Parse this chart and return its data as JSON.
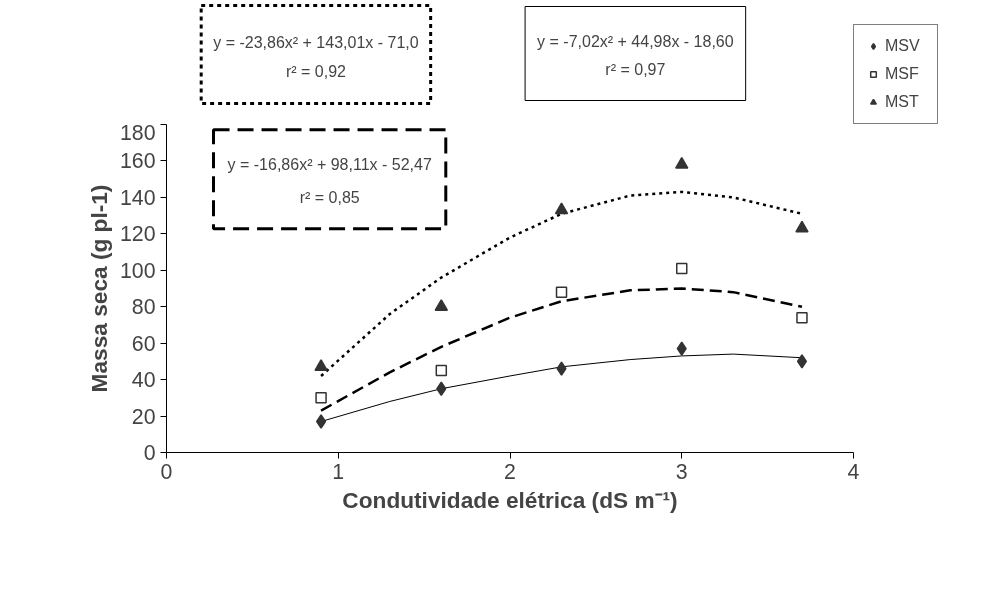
{
  "chart_data": {
    "type": "scatter",
    "xlabel": "Condutividade elétrica (dS m⁻¹)",
    "ylabel": "Massa seca (g pl-1)",
    "xlim": [
      0,
      4
    ],
    "xticks": [
      0,
      1,
      2,
      3,
      4
    ],
    "ylim": [
      0,
      180
    ],
    "yticks": [
      0,
      20,
      40,
      60,
      80,
      100,
      120,
      140,
      160,
      180
    ],
    "grid": false,
    "legend": "top right",
    "x": [
      0.9,
      1.6,
      2.3,
      3.0,
      3.7
    ],
    "series": [
      {
        "name": "MSV",
        "marker": "diamond",
        "color": "#333333",
        "values": [
          17,
          35,
          46,
          57,
          50
        ]
      },
      {
        "name": "MSF",
        "marker": "square",
        "color": "#333333",
        "values": [
          30,
          45,
          88,
          101,
          74
        ]
      },
      {
        "name": "MST",
        "marker": "triangle",
        "color": "#333333",
        "values": [
          47,
          80,
          133,
          158,
          123
        ]
      },
      {
        "type": "line",
        "line_style": "solid",
        "color": "#000000",
        "x": [
          0.9,
          1.3,
          1.6,
          2.0,
          2.3,
          2.7,
          3.0,
          3.3,
          3.7
        ],
        "values": [
          17,
          28,
          35,
          42,
          47,
          51,
          53,
          54,
          52
        ]
      },
      {
        "type": "line",
        "line_style": "dashed",
        "color": "#000000",
        "x": [
          0.9,
          1.3,
          1.6,
          2.0,
          2.3,
          2.7,
          3.0,
          3.3,
          3.7
        ],
        "values": [
          23,
          44,
          58,
          74,
          83,
          89,
          90,
          88,
          80
        ]
      },
      {
        "type": "line",
        "line_style": "dotted",
        "color": "#000000",
        "x": [
          0.9,
          1.3,
          1.6,
          2.0,
          2.3,
          2.7,
          3.0,
          3.3,
          3.7
        ],
        "values": [
          42,
          76,
          96,
          118,
          131,
          141,
          143,
          140,
          131
        ]
      }
    ],
    "annotations": [
      "y = -23,86x² + 143,01x - 71,0\nr² = 0,92",
      "y = -7,02x² + 44,98x - 18,60\nr² = 0,97",
      "y = -16,86x² + 98,11x - 52,47\nr² = 0,85"
    ]
  }
}
